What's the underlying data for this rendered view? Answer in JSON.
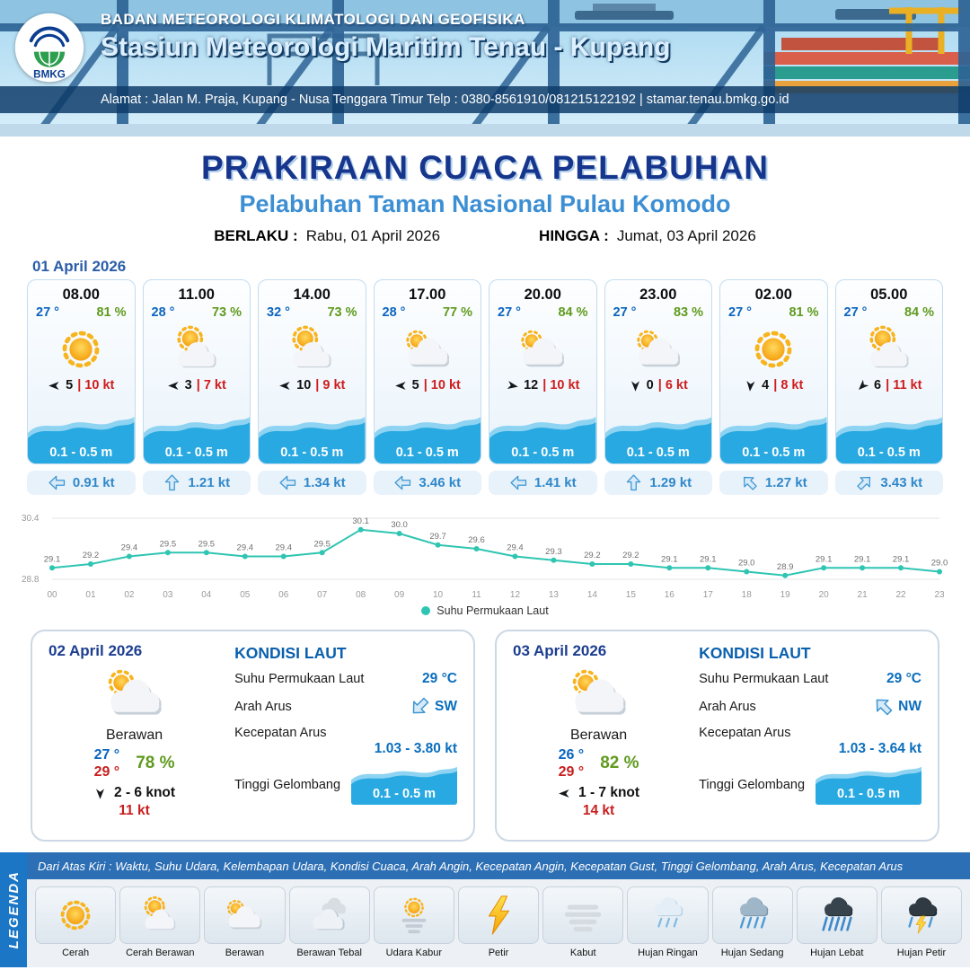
{
  "header": {
    "agency": "BADAN METEOROLOGI KLIMATOLOGI DAN GEOFISIKA",
    "station": "Stasiun Meteorologi Maritim Tenau - Kupang",
    "address": "Alamat : Jalan M. Praja, Kupang - Nusa Tenggara Timur Telp : 0380-8561910/081215122192  | stamar.tenau.bmkg.go.id",
    "logo_text": "BMKG"
  },
  "title": {
    "main": "PRAKIRAAN CUACA PELABUHAN",
    "subtitle": "Pelabuhan Taman Nasional Pulau Komodo",
    "valid_label": "BERLAKU :",
    "valid_value": "Rabu, 01 April 2026",
    "until_label": "HINGGA :",
    "until_value": "Jumat, 03 April 2026"
  },
  "forecast_date": "01 April 2026",
  "cards": [
    {
      "time": "08.00",
      "temp": "27 °",
      "humidity": "81 %",
      "icon": "cerah",
      "wind_deg": 270,
      "wind_speed": "5",
      "gust": "| 10 kt",
      "wave": "0.1 - 0.5 m",
      "current_deg": 270,
      "current_speed": "0.91 kt"
    },
    {
      "time": "11.00",
      "temp": "28 °",
      "humidity": "73 %",
      "icon": "cerah-berawan",
      "wind_deg": 270,
      "wind_speed": "3",
      "gust": "| 7 kt",
      "wave": "0.1 - 0.5 m",
      "current_deg": 0,
      "current_speed": "1.21 kt"
    },
    {
      "time": "14.00",
      "temp": "32 °",
      "humidity": "73 %",
      "icon": "cerah-berawan",
      "wind_deg": 270,
      "wind_speed": "10",
      "gust": "| 9 kt",
      "wave": "0.1 - 0.5 m",
      "current_deg": 270,
      "current_speed": "1.34 kt"
    },
    {
      "time": "17.00",
      "temp": "28 °",
      "humidity": "77 %",
      "icon": "berawan",
      "wind_deg": 270,
      "wind_speed": "5",
      "gust": "| 10 kt",
      "wave": "0.1 - 0.5 m",
      "current_deg": 270,
      "current_speed": "3.46 kt"
    },
    {
      "time": "20.00",
      "temp": "27 °",
      "humidity": "84 %",
      "icon": "berawan",
      "wind_deg": 100,
      "wind_speed": "12",
      "gust": "| 10 kt",
      "wave": "0.1 - 0.5 m",
      "current_deg": 270,
      "current_speed": "1.41 kt"
    },
    {
      "time": "23.00",
      "temp": "27 °",
      "humidity": "83 %",
      "icon": "berawan",
      "wind_deg": 180,
      "wind_speed": "0",
      "gust": "| 6 kt",
      "wave": "0.1 - 0.5 m",
      "current_deg": 0,
      "current_speed": "1.29 kt"
    },
    {
      "time": "02.00",
      "temp": "27 °",
      "humidity": "81 %",
      "icon": "cerah",
      "wind_deg": 185,
      "wind_speed": "4",
      "gust": "| 8 kt",
      "wave": "0.1 - 0.5 m",
      "current_deg": 315,
      "current_speed": "1.27 kt"
    },
    {
      "time": "05.00",
      "temp": "27 °",
      "humidity": "84 %",
      "icon": "cerah-berawan",
      "wind_deg": 225,
      "wind_speed": "6",
      "gust": "| 11 kt",
      "wave": "0.1 - 0.5 m",
      "current_deg": 45,
      "current_speed": "3.43 kt"
    }
  ],
  "chart_data": {
    "type": "line",
    "series_name": "Suhu Permukaan Laut",
    "x": [
      "00",
      "01",
      "02",
      "03",
      "04",
      "05",
      "06",
      "07",
      "08",
      "09",
      "10",
      "11",
      "12",
      "13",
      "14",
      "15",
      "16",
      "17",
      "18",
      "19",
      "20",
      "21",
      "22",
      "23"
    ],
    "values": [
      29.1,
      29.2,
      29.4,
      29.5,
      29.5,
      29.4,
      29.4,
      29.5,
      30.1,
      30.0,
      29.7,
      29.6,
      29.4,
      29.3,
      29.2,
      29.2,
      29.1,
      29.1,
      29.0,
      28.9,
      29.1,
      29.1,
      29.1,
      29.0
    ],
    "ylim": [
      28.8,
      30.4
    ],
    "xlabel": "",
    "ylabel": "",
    "grid": "top-bottom-only",
    "legend_position": "bottom",
    "color": "#2fc5b2"
  },
  "day_cards": [
    {
      "date": "02 April 2026",
      "icon": "berawan",
      "condition": "Berawan",
      "temp_min": "27 °",
      "temp_max": "29 °",
      "humidity": "78 %",
      "wind_deg": 180,
      "wind_range": "2  - 6 knot",
      "gust": "11 kt",
      "sea": {
        "title": "KONDISI LAUT",
        "sst_label": "Suhu Permukaan Laut",
        "sst": "29 °C",
        "current_dir_label": "Arah Arus",
        "current_dir_deg": 225,
        "current_dir": "SW",
        "current_speed_label": "Kecepatan Arus",
        "current_speed": "1.03 - 3.80 kt",
        "wave_label": "Tinggi Gelombang",
        "wave": "0.1 - 0.5 m"
      }
    },
    {
      "date": "03 April 2026",
      "icon": "berawan",
      "condition": "Berawan",
      "temp_min": "26 °",
      "temp_max": "29 °",
      "humidity": "82 %",
      "wind_deg": 270,
      "wind_range": "1  - 7 knot",
      "gust": "14 kt",
      "sea": {
        "title": "KONDISI LAUT",
        "sst_label": "Suhu Permukaan Laut",
        "sst": "29 °C",
        "current_dir_label": "Arah Arus",
        "current_dir_deg": 315,
        "current_dir": "NW",
        "current_speed_label": "Kecepatan Arus",
        "current_speed": "1.03 - 3.64 kt",
        "wave_label": "Tinggi Gelombang",
        "wave": "0.1 - 0.5 m"
      }
    }
  ],
  "legend": {
    "vertical_label": "LEGENDA",
    "note": "Dari Atas Kiri : Waktu, Suhu Udara, Kelembapan Udara, Kondisi Cuaca, Arah Angin, Kecepatan Angin, Kecepatan Gust, Tinggi Gelombang, Arah Arus, Kecepatan Arus",
    "items": [
      {
        "label": "Cerah",
        "icon": "cerah"
      },
      {
        "label": "Cerah Berawan",
        "icon": "cerah-berawan"
      },
      {
        "label": "Berawan",
        "icon": "berawan"
      },
      {
        "label": "Berawan Tebal",
        "icon": "berawan-tebal"
      },
      {
        "label": "Udara Kabur",
        "icon": "udara-kabur"
      },
      {
        "label": "Petir",
        "icon": "petir"
      },
      {
        "label": "Kabut",
        "icon": "kabut"
      },
      {
        "label": "Hujan Ringan",
        "icon": "hujan-ringan"
      },
      {
        "label": "Hujan Sedang",
        "icon": "hujan-sedang"
      },
      {
        "label": "Hujan Lebat",
        "icon": "hujan-lebat"
      },
      {
        "label": "Hujan Petir",
        "icon": "hujan-petir"
      }
    ]
  },
  "colors": {
    "accent_blue": "#16358c",
    "subtitle_blue": "#3d8fd4",
    "temp_blue": "#0a64c0",
    "humidity_green": "#5f9a1d",
    "gust_red": "#cf1d1d",
    "wave_blue": "#29a9e1",
    "current_blue": "#2f88c9",
    "chart_teal": "#2fc5b2"
  }
}
